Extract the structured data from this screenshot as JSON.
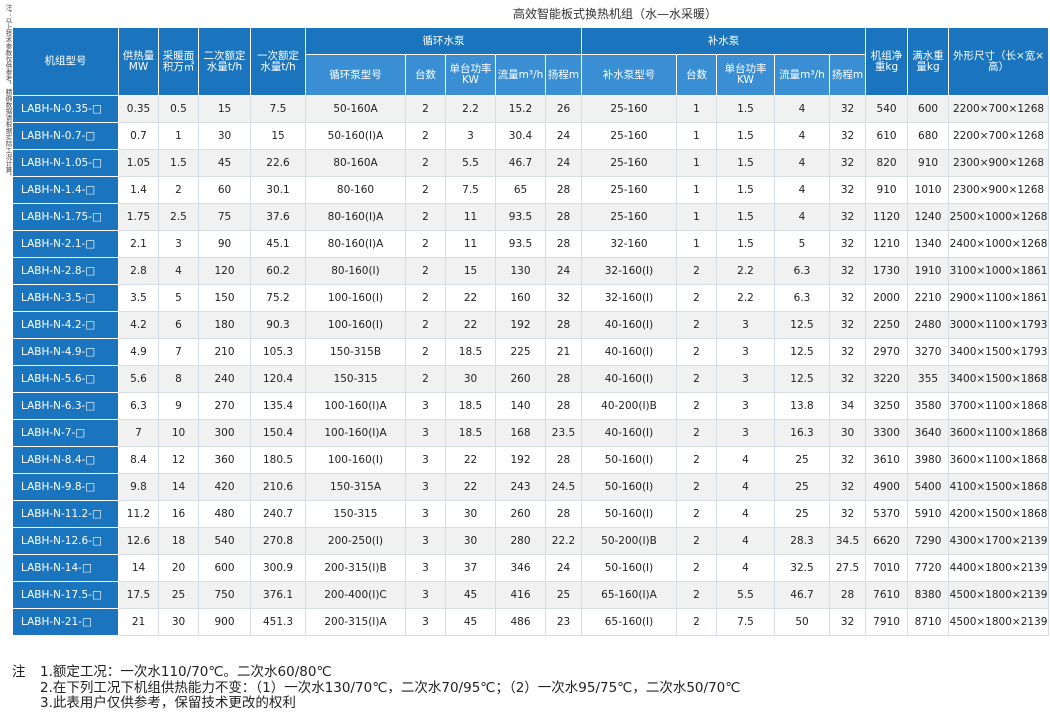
{
  "side_note": "注：以上技术参数仅供参考，精确数据请根据实际工况计算。",
  "title": "高效智能板式换热机组（水—水采暖）",
  "headers": {
    "model": "机组型号",
    "supply_heat": "供热量MW",
    "area": "采暖面积万㎡",
    "secondary_flow": "二次额定水量t/h",
    "primary_flow": "一次额定水量t/h",
    "circ_pump": "循环水泵",
    "circ_model": "循环泵型号",
    "circ_count": "台数",
    "circ_power": "单台功率KW",
    "circ_flow": "流量m³/h",
    "circ_head": "扬程m",
    "makeup_pump": "补水泵",
    "makeup_model": "补水泵型号",
    "makeup_count": "台数",
    "makeup_power": "单台功率KW",
    "makeup_flow": "流量m³/h",
    "makeup_head": "扬程m",
    "net_weight": "机组净重kg",
    "full_weight": "满水重量kg",
    "dimensions": "外形尺寸（长×宽×高）"
  },
  "rows": [
    [
      "LABH-N-0.35-□",
      "0.35",
      "0.5",
      "15",
      "7.5",
      "50-160A",
      "2",
      "2.2",
      "15.2",
      "26",
      "25-160",
      "1",
      "1.5",
      "4",
      "32",
      "540",
      "600",
      "2200×700×1268"
    ],
    [
      "LABH-N-0.7-□",
      "0.7",
      "1",
      "30",
      "15",
      "50-160(Ⅰ)A",
      "2",
      "3",
      "30.4",
      "24",
      "25-160",
      "1",
      "1.5",
      "4",
      "32",
      "610",
      "680",
      "2200×700×1268"
    ],
    [
      "LABH-N-1.05-□",
      "1.05",
      "1.5",
      "45",
      "22.6",
      "80-160A",
      "2",
      "5.5",
      "46.7",
      "24",
      "25-160",
      "1",
      "1.5",
      "4",
      "32",
      "820",
      "910",
      "2300×900×1268"
    ],
    [
      "LABH-N-1.4-□",
      "1.4",
      "2",
      "60",
      "30.1",
      "80-160",
      "2",
      "7.5",
      "65",
      "28",
      "25-160",
      "1",
      "1.5",
      "4",
      "32",
      "910",
      "1010",
      "2300×900×1268"
    ],
    [
      "LABH-N-1.75-□",
      "1.75",
      "2.5",
      "75",
      "37.6",
      "80-160(Ⅰ)A",
      "2",
      "11",
      "93.5",
      "28",
      "25-160",
      "1",
      "1.5",
      "4",
      "32",
      "1120",
      "1240",
      "2500×1000×1268"
    ],
    [
      "LABH-N-2.1-□",
      "2.1",
      "3",
      "90",
      "45.1",
      "80-160(Ⅰ)A",
      "2",
      "11",
      "93.5",
      "28",
      "32-160",
      "1",
      "1.5",
      "5",
      "32",
      "1210",
      "1340",
      "2400×1000×1268"
    ],
    [
      "LABH-N-2.8-□",
      "2.8",
      "4",
      "120",
      "60.2",
      "80-160(Ⅰ)",
      "2",
      "15",
      "130",
      "24",
      "32-160(Ⅰ)",
      "2",
      "2.2",
      "6.3",
      "32",
      "1730",
      "1910",
      "3100×1000×1861"
    ],
    [
      "LABH-N-3.5-□",
      "3.5",
      "5",
      "150",
      "75.2",
      "100-160(Ⅰ)",
      "2",
      "22",
      "160",
      "32",
      "32-160(Ⅰ)",
      "2",
      "2.2",
      "6.3",
      "32",
      "2000",
      "2210",
      "2900×1100×1861"
    ],
    [
      "LABH-N-4.2-□",
      "4.2",
      "6",
      "180",
      "90.3",
      "100-160(Ⅰ)",
      "2",
      "22",
      "192",
      "28",
      "40-160(Ⅰ)",
      "2",
      "3",
      "12.5",
      "32",
      "2250",
      "2480",
      "3000×1100×1793"
    ],
    [
      "LABH-N-4.9-□",
      "4.9",
      "7",
      "210",
      "105.3",
      "150-315B",
      "2",
      "18.5",
      "225",
      "21",
      "40-160(Ⅰ)",
      "2",
      "3",
      "12.5",
      "32",
      "2970",
      "3270",
      "3400×1500×1793"
    ],
    [
      "LABH-N-5.6-□",
      "5.6",
      "8",
      "240",
      "120.4",
      "150-315",
      "2",
      "30",
      "260",
      "28",
      "40-160(Ⅰ)",
      "2",
      "3",
      "12.5",
      "32",
      "3220",
      "355",
      "3400×1500×1868"
    ],
    [
      "LABH-N-6.3-□",
      "6.3",
      "9",
      "270",
      "135.4",
      "100-160(Ⅰ)A",
      "3",
      "18.5",
      "140",
      "28",
      "40-200(Ⅰ)B",
      "2",
      "3",
      "13.8",
      "34",
      "3250",
      "3580",
      "3700×1100×1868"
    ],
    [
      "LABH-N-7-□",
      "7",
      "10",
      "300",
      "150.4",
      "100-160(Ⅰ)A",
      "3",
      "18.5",
      "168",
      "23.5",
      "40-160(Ⅰ)",
      "2",
      "3",
      "16.3",
      "30",
      "3300",
      "3640",
      "3600×1100×1868"
    ],
    [
      "LABH-N-8.4-□",
      "8.4",
      "12",
      "360",
      "180.5",
      "100-160(Ⅰ)",
      "3",
      "22",
      "192",
      "28",
      "50-160(Ⅰ)",
      "2",
      "4",
      "25",
      "32",
      "3610",
      "3980",
      "3600×1100×1868"
    ],
    [
      "LABH-N-9.8-□",
      "9.8",
      "14",
      "420",
      "210.6",
      "150-315A",
      "3",
      "22",
      "243",
      "24.5",
      "50-160(Ⅰ)",
      "2",
      "4",
      "25",
      "32",
      "4900",
      "5400",
      "4100×1500×1868"
    ],
    [
      "LABH-N-11.2-□",
      "11.2",
      "16",
      "480",
      "240.7",
      "150-315",
      "3",
      "30",
      "260",
      "28",
      "50-160(Ⅰ)",
      "2",
      "4",
      "25",
      "32",
      "5370",
      "5910",
      "4200×1500×1868"
    ],
    [
      "LABH-N-12.6-□",
      "12.6",
      "18",
      "540",
      "270.8",
      "200-250(Ⅰ)",
      "3",
      "30",
      "280",
      "22.2",
      "50-200(Ⅰ)B",
      "2",
      "4",
      "28.3",
      "34.5",
      "6620",
      "7290",
      "4300×1700×2139"
    ],
    [
      "LABH-N-14-□",
      "14",
      "20",
      "600",
      "300.9",
      "200-315(Ⅰ)B",
      "3",
      "37",
      "346",
      "24",
      "50-160(Ⅰ)",
      "2",
      "4",
      "32.5",
      "27.5",
      "7010",
      "7720",
      "4400×1800×2139"
    ],
    [
      "LABH-N-17.5-□",
      "17.5",
      "25",
      "750",
      "376.1",
      "200-400(Ⅰ)C",
      "3",
      "45",
      "416",
      "25",
      "65-160(Ⅰ)A",
      "2",
      "5.5",
      "46.7",
      "28",
      "7610",
      "8380",
      "4500×1800×2139"
    ],
    [
      "LABH-N-21-□",
      "21",
      "30",
      "900",
      "451.3",
      "200-315(Ⅰ)A",
      "3",
      "45",
      "486",
      "23",
      "65-160(Ⅰ)",
      "2",
      "7.5",
      "50",
      "32",
      "7910",
      "8710",
      "4500×1800×2139"
    ]
  ],
  "notes": {
    "lead": "注",
    "items": [
      "1.额定工况：一次水110/70℃。二次水60/80℃",
      "2.在下列工况下机组供热能力不变：（1）一次水130/70℃，二次水70/95℃；（2）一次水95/75℃，二次水50/70℃",
      "3.此表用户仅供参考，保留技术更改的权利"
    ]
  },
  "colors": {
    "header_blue": "#1b74be",
    "row_alt": "#f1f1f1"
  }
}
